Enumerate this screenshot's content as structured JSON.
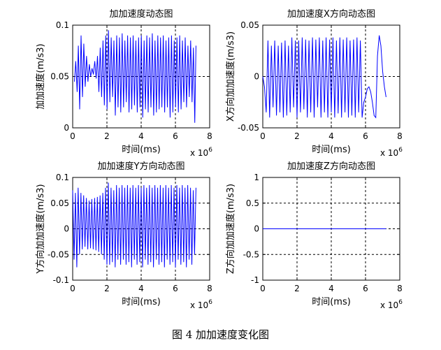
{
  "caption": "图 4  加加速度变化图",
  "chart_data": [
    {
      "type": "line",
      "title": "加加速度动态图",
      "xlabel": "时间(ms)",
      "ylabel": "加加速度(m/s3)",
      "x_multiplier": "x 10^6",
      "xlim": [
        0,
        8
      ],
      "ylim": [
        0,
        0.1
      ],
      "xticks": [
        "0",
        "2",
        "4",
        "6",
        "8"
      ],
      "yticks": [
        "0",
        "0.05",
        "0.1"
      ],
      "grid": true,
      "color": "#0000ff",
      "series": [
        {
          "x": [
            0.1,
            0.18,
            0.26,
            0.33,
            0.41,
            0.49,
            0.57,
            0.65,
            0.73,
            0.81,
            0.89,
            0.97,
            1.05,
            1.13,
            1.21,
            1.29,
            1.37,
            1.45,
            1.53,
            1.61,
            1.69,
            1.77,
            1.85,
            1.93,
            2.01,
            2.09,
            2.17,
            2.25,
            2.33,
            2.41,
            2.49,
            2.57,
            2.65,
            2.73,
            2.81,
            2.89,
            2.97,
            3.05,
            3.13,
            3.21,
            3.29,
            3.37,
            3.45,
            3.53,
            3.61,
            3.69,
            3.77,
            3.85,
            3.93,
            4.01,
            4.09,
            4.17,
            4.25,
            4.33,
            4.41,
            4.49,
            4.57,
            4.65,
            4.73,
            4.81,
            4.89,
            4.97,
            5.05,
            5.13,
            5.21,
            5.29,
            5.37,
            5.45,
            5.53,
            5.61,
            5.69,
            5.77,
            5.85,
            5.93,
            6.01,
            6.09,
            6.17,
            6.25,
            6.33,
            6.41,
            6.49,
            6.57,
            6.65,
            6.73,
            6.81,
            6.89,
            6.97,
            7.05,
            7.13,
            7.2
          ],
          "y": [
            0.045,
            0.065,
            0.035,
            0.08,
            0.018,
            0.09,
            0.03,
            0.082,
            0.04,
            0.07,
            0.045,
            0.062,
            0.05,
            0.058,
            0.052,
            0.065,
            0.048,
            0.07,
            0.035,
            0.078,
            0.03,
            0.085,
            0.022,
            0.09,
            0.018,
            0.095,
            0.025,
            0.088,
            0.03,
            0.085,
            0.012,
            0.09,
            0.02,
            0.088,
            0.015,
            0.092,
            0.02,
            0.085,
            0.025,
            0.09,
            0.015,
            0.088,
            0.018,
            0.09,
            0.022,
            0.085,
            0.015,
            0.088,
            0.02,
            0.09,
            0.01,
            0.085,
            0.018,
            0.09,
            0.015,
            0.088,
            0.02,
            0.092,
            0.012,
            0.085,
            0.015,
            0.09,
            0.018,
            0.088,
            0.02,
            0.09,
            0.015,
            0.085,
            0.02,
            0.088,
            0.01,
            0.09,
            0.015,
            0.085,
            0.02,
            0.088,
            0.015,
            0.09,
            0.018,
            0.085,
            0.025,
            0.088,
            0.02,
            0.08,
            0.03,
            0.085,
            0.025,
            0.078,
            0.005,
            0.08
          ]
        }
      ]
    },
    {
      "type": "line",
      "title": "加加速度X方向动态图",
      "xlabel": "时间(ms)",
      "ylabel": "X方向加加速度(m/s3)",
      "x_multiplier": "x 10^6",
      "xlim": [
        0,
        8
      ],
      "ylim": [
        -0.05,
        0.05
      ],
      "xticks": [
        "0",
        "2",
        "4",
        "6",
        "8"
      ],
      "yticks": [
        "-0.05",
        "0",
        "0.05"
      ],
      "grid": true,
      "color": "#0000ff",
      "series": [
        {
          "x": [
            0.0,
            0.1,
            0.2,
            0.3,
            0.4,
            0.5,
            0.6,
            0.7,
            0.8,
            0.9,
            1.0,
            1.1,
            1.2,
            1.3,
            1.4,
            1.5,
            1.6,
            1.7,
            1.8,
            1.9,
            2.0,
            2.1,
            2.2,
            2.3,
            2.4,
            2.5,
            2.6,
            2.7,
            2.8,
            2.9,
            3.0,
            3.1,
            3.2,
            3.3,
            3.4,
            3.5,
            3.6,
            3.7,
            3.8,
            3.9,
            4.0,
            4.1,
            4.2,
            4.3,
            4.4,
            4.5,
            4.6,
            4.7,
            4.8,
            4.9,
            5.0,
            5.1,
            5.2,
            5.3,
            5.4,
            5.5,
            5.6,
            5.7,
            5.8,
            5.9,
            6.0,
            6.1,
            6.2,
            6.3,
            6.4,
            6.5,
            6.6,
            6.7,
            6.8,
            6.9,
            7.0,
            7.1,
            7.2
          ],
          "y": [
            0.0,
            -0.01,
            -0.035,
            0.035,
            -0.04,
            0.03,
            -0.03,
            0.035,
            -0.038,
            0.03,
            -0.035,
            0.033,
            -0.04,
            0.035,
            -0.038,
            0.03,
            -0.035,
            0.038,
            -0.03,
            0.035,
            -0.04,
            0.035,
            -0.035,
            0.038,
            -0.032,
            0.036,
            -0.04,
            0.035,
            -0.035,
            0.038,
            -0.04,
            0.036,
            -0.03,
            0.038,
            -0.04,
            0.035,
            -0.035,
            0.038,
            -0.04,
            0.036,
            -0.035,
            0.038,
            -0.04,
            0.035,
            -0.036,
            0.038,
            -0.04,
            0.036,
            -0.035,
            0.038,
            -0.04,
            0.035,
            -0.038,
            0.036,
            -0.04,
            0.038,
            -0.035,
            0.035,
            -0.04,
            -0.025,
            -0.02,
            -0.012,
            -0.01,
            -0.015,
            -0.025,
            -0.038,
            -0.04,
            0.02,
            0.04,
            0.03,
            0.005,
            -0.01,
            -0.02
          ]
        }
      ]
    },
    {
      "type": "line",
      "title": "加加速度Y方向动态图",
      "xlabel": "时间(ms)",
      "ylabel": "Y方向加加速度(m/s3)",
      "x_multiplier": "x 10^6",
      "xlim": [
        0,
        8
      ],
      "ylim": [
        -0.1,
        0.1
      ],
      "xticks": [
        "0",
        "2",
        "4",
        "6",
        "8"
      ],
      "yticks": [
        "-0.1",
        "-0.05",
        "0",
        "0.05",
        "0.1"
      ],
      "grid": true,
      "color": "#0000ff",
      "series": [
        {
          "x": [
            0.0,
            0.08,
            0.16,
            0.24,
            0.32,
            0.4,
            0.48,
            0.56,
            0.64,
            0.72,
            0.8,
            0.88,
            0.96,
            1.04,
            1.12,
            1.2,
            1.28,
            1.36,
            1.44,
            1.52,
            1.6,
            1.68,
            1.76,
            1.84,
            1.92,
            2.0,
            2.08,
            2.16,
            2.24,
            2.32,
            2.4,
            2.48,
            2.56,
            2.64,
            2.72,
            2.8,
            2.88,
            2.96,
            3.04,
            3.12,
            3.2,
            3.28,
            3.36,
            3.44,
            3.52,
            3.6,
            3.68,
            3.76,
            3.84,
            3.92,
            4.0,
            4.08,
            4.16,
            4.24,
            4.32,
            4.4,
            4.48,
            4.56,
            4.64,
            4.72,
            4.8,
            4.88,
            4.96,
            5.04,
            5.12,
            5.2,
            5.28,
            5.36,
            5.44,
            5.52,
            5.6,
            5.68,
            5.76,
            5.84,
            5.92,
            6.0,
            6.08,
            6.16,
            6.24,
            6.32,
            6.4,
            6.48,
            6.56,
            6.64,
            6.72,
            6.8,
            6.88,
            6.96,
            7.04,
            7.12,
            7.2
          ],
          "y": [
            0.075,
            -0.06,
            0.07,
            -0.075,
            0.08,
            -0.05,
            0.07,
            -0.04,
            0.065,
            -0.035,
            0.06,
            -0.04,
            0.055,
            -0.038,
            0.058,
            -0.04,
            0.06,
            -0.042,
            0.062,
            -0.045,
            0.065,
            -0.05,
            0.07,
            -0.06,
            0.08,
            -0.07,
            0.09,
            -0.07,
            0.08,
            -0.065,
            0.075,
            -0.075,
            0.085,
            -0.06,
            0.08,
            -0.07,
            0.085,
            -0.06,
            0.08,
            -0.07,
            0.085,
            -0.065,
            0.08,
            -0.075,
            0.085,
            -0.06,
            0.08,
            -0.07,
            0.085,
            -0.065,
            0.08,
            -0.075,
            0.085,
            -0.06,
            0.08,
            -0.07,
            0.085,
            -0.065,
            0.08,
            -0.075,
            0.085,
            -0.06,
            0.08,
            -0.07,
            0.085,
            -0.065,
            0.08,
            -0.075,
            0.085,
            -0.06,
            0.08,
            -0.07,
            0.085,
            -0.065,
            0.08,
            -0.075,
            0.085,
            -0.06,
            0.08,
            -0.07,
            0.085,
            -0.065,
            0.08,
            -0.075,
            0.085,
            -0.06,
            0.08,
            -0.07,
            0.075,
            -0.05,
            0.08
          ]
        }
      ]
    },
    {
      "type": "line",
      "title": "加加速度Z方向动态图",
      "xlabel": "时间(ms)",
      "ylabel": "Z方向加加速度(m/s3)",
      "x_multiplier": "x 10^6",
      "xlim": [
        0,
        8
      ],
      "ylim": [
        -1,
        1
      ],
      "xticks": [
        "0",
        "2",
        "4",
        "6",
        "8"
      ],
      "yticks": [
        "-1",
        "-0.5",
        "0",
        "0.5",
        "1"
      ],
      "grid": true,
      "color": "#0000ff",
      "series": [
        {
          "x": [
            0,
            7.2
          ],
          "y": [
            0,
            0
          ]
        }
      ]
    }
  ]
}
